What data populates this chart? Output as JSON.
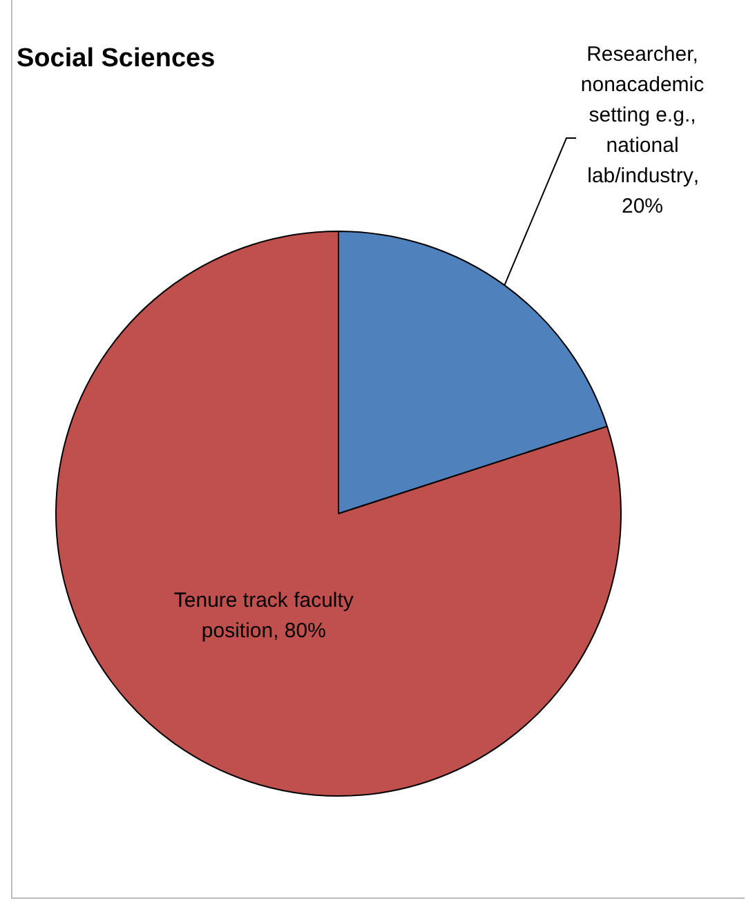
{
  "chart_data": {
    "type": "pie",
    "title": "Social Sciences",
    "categories": [
      "Researcher, nonacademic setting e.g., national lab/industry",
      "Tenure track faculty position"
    ],
    "values": [
      20,
      80
    ],
    "colors": [
      "#4f81bd",
      "#c0504d"
    ],
    "value_labels": [
      ", 20%",
      ", 80%"
    ]
  }
}
